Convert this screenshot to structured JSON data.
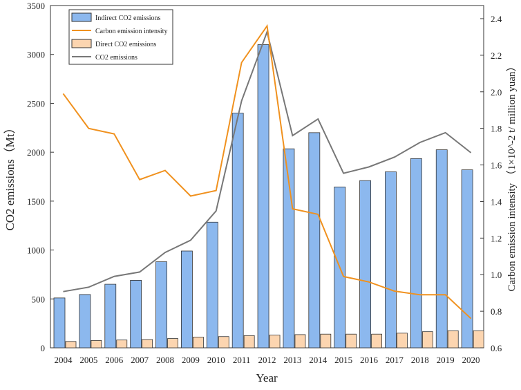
{
  "chart_data": {
    "type": "bar",
    "xlabel": "Year",
    "ylabel": "CO2 emissions（Mt）",
    "ylabel_right": "Carbon emission intensity （1×10^-2 t/ million yuan）",
    "ylim": [
      0,
      3500
    ],
    "ylim_right": [
      0.6,
      2.4
    ],
    "yticks": [
      0,
      500,
      1000,
      1500,
      2000,
      2500,
      3000,
      3500
    ],
    "yticks_right": [
      "0.6",
      "0.8",
      "1.0",
      "1.2",
      "1.4",
      "1.6",
      "1.8",
      "2.0",
      "2.2",
      "2.4"
    ],
    "categories": [
      "2004",
      "2005",
      "2006",
      "2007",
      "2008",
      "2009",
      "2010",
      "2011",
      "2012",
      "2013",
      "2014",
      "2015",
      "2016",
      "2017",
      "2018",
      "2019",
      "2020"
    ],
    "legend": [
      "Indirect CO2 emissions",
      "Carbon emission intensity",
      "Direct CO2 emissions",
      "CO2 emissions"
    ],
    "legend_position": "top-left",
    "series": [
      {
        "name": "Indirect CO2 emissions",
        "type": "bar",
        "axis": "left",
        "color": "#8cb8ee",
        "values": [
          510,
          545,
          650,
          690,
          880,
          990,
          1285,
          2400,
          3100,
          2035,
          2200,
          1645,
          1710,
          1800,
          1935,
          2025,
          1820
        ]
      },
      {
        "name": "Direct CO2 emissions",
        "type": "bar",
        "axis": "left",
        "color": "#fcd5b0",
        "values": [
          65,
          75,
          80,
          85,
          95,
          110,
          115,
          125,
          130,
          135,
          140,
          140,
          140,
          150,
          165,
          175,
          175
        ]
      },
      {
        "name": "CO2 emissions",
        "type": "line",
        "axis": "left",
        "color": "#777777",
        "values": [
          575,
          620,
          730,
          775,
          975,
          1100,
          1400,
          2525,
          3230,
          2170,
          2340,
          1785,
          1850,
          1950,
          2100,
          2200,
          1995
        ]
      },
      {
        "name": "Carbon emission intensity",
        "type": "line",
        "axis": "right",
        "color": "#f0911e",
        "values": [
          1.99,
          1.8,
          1.77,
          1.52,
          1.57,
          1.43,
          1.46,
          2.16,
          2.36,
          1.36,
          1.33,
          0.99,
          0.96,
          0.91,
          0.89,
          0.89,
          0.76
        ]
      }
    ]
  }
}
